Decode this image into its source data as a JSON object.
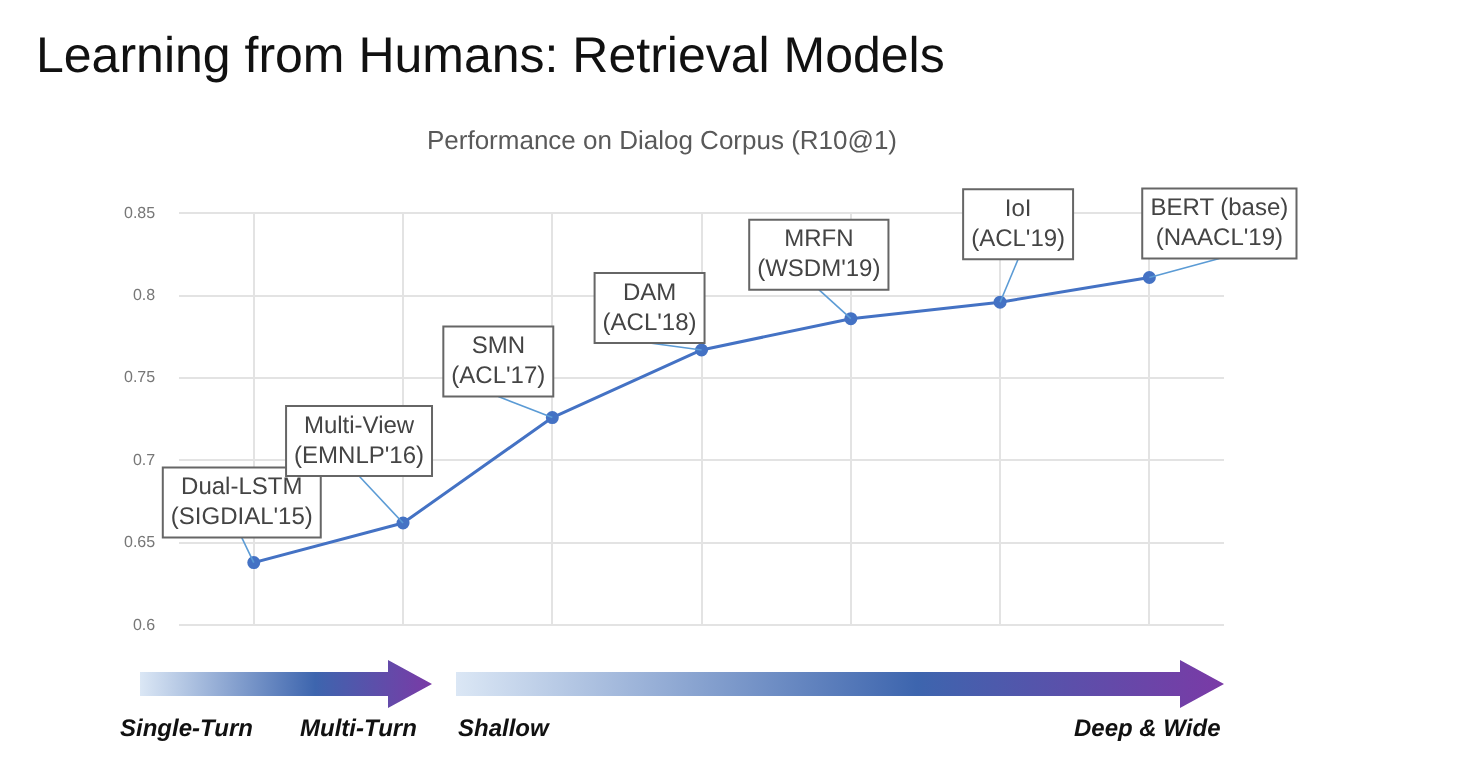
{
  "chart_data": {
    "type": "line",
    "title": "Learning from Humans: Retrieval Models",
    "subtitle": "Performance on Dialog Corpus (R10@1)",
    "categories": [
      null,
      null,
      null,
      null,
      null,
      null,
      null
    ],
    "series": [
      {
        "color": "#4472c4",
        "values": [
          0.638,
          0.662,
          0.726,
          0.767,
          0.786,
          0.796,
          0.811
        ]
      }
    ],
    "ylim": [
      0.6,
      0.85
    ],
    "yticks": [
      0.6,
      0.65,
      0.7,
      0.75,
      0.8,
      0.85
    ],
    "grid": true,
    "legend": false,
    "marker": "circle",
    "line_style": "solid",
    "annotations": [
      "Dual-LSTM\n(SIGDIAL'15)",
      "Multi-View\n(EMNLP'16)",
      "SMN\n(ACL'17)",
      "DAM\n(ACL'18)",
      "MRFN\n(WSDM'19)",
      "IoI\n(ACL'19)",
      "BERT (base)\n(NAACL'19)",
      "Single-Turn",
      "Multi-Turn",
      "Shallow",
      "Deep & Wide"
    ]
  }
}
